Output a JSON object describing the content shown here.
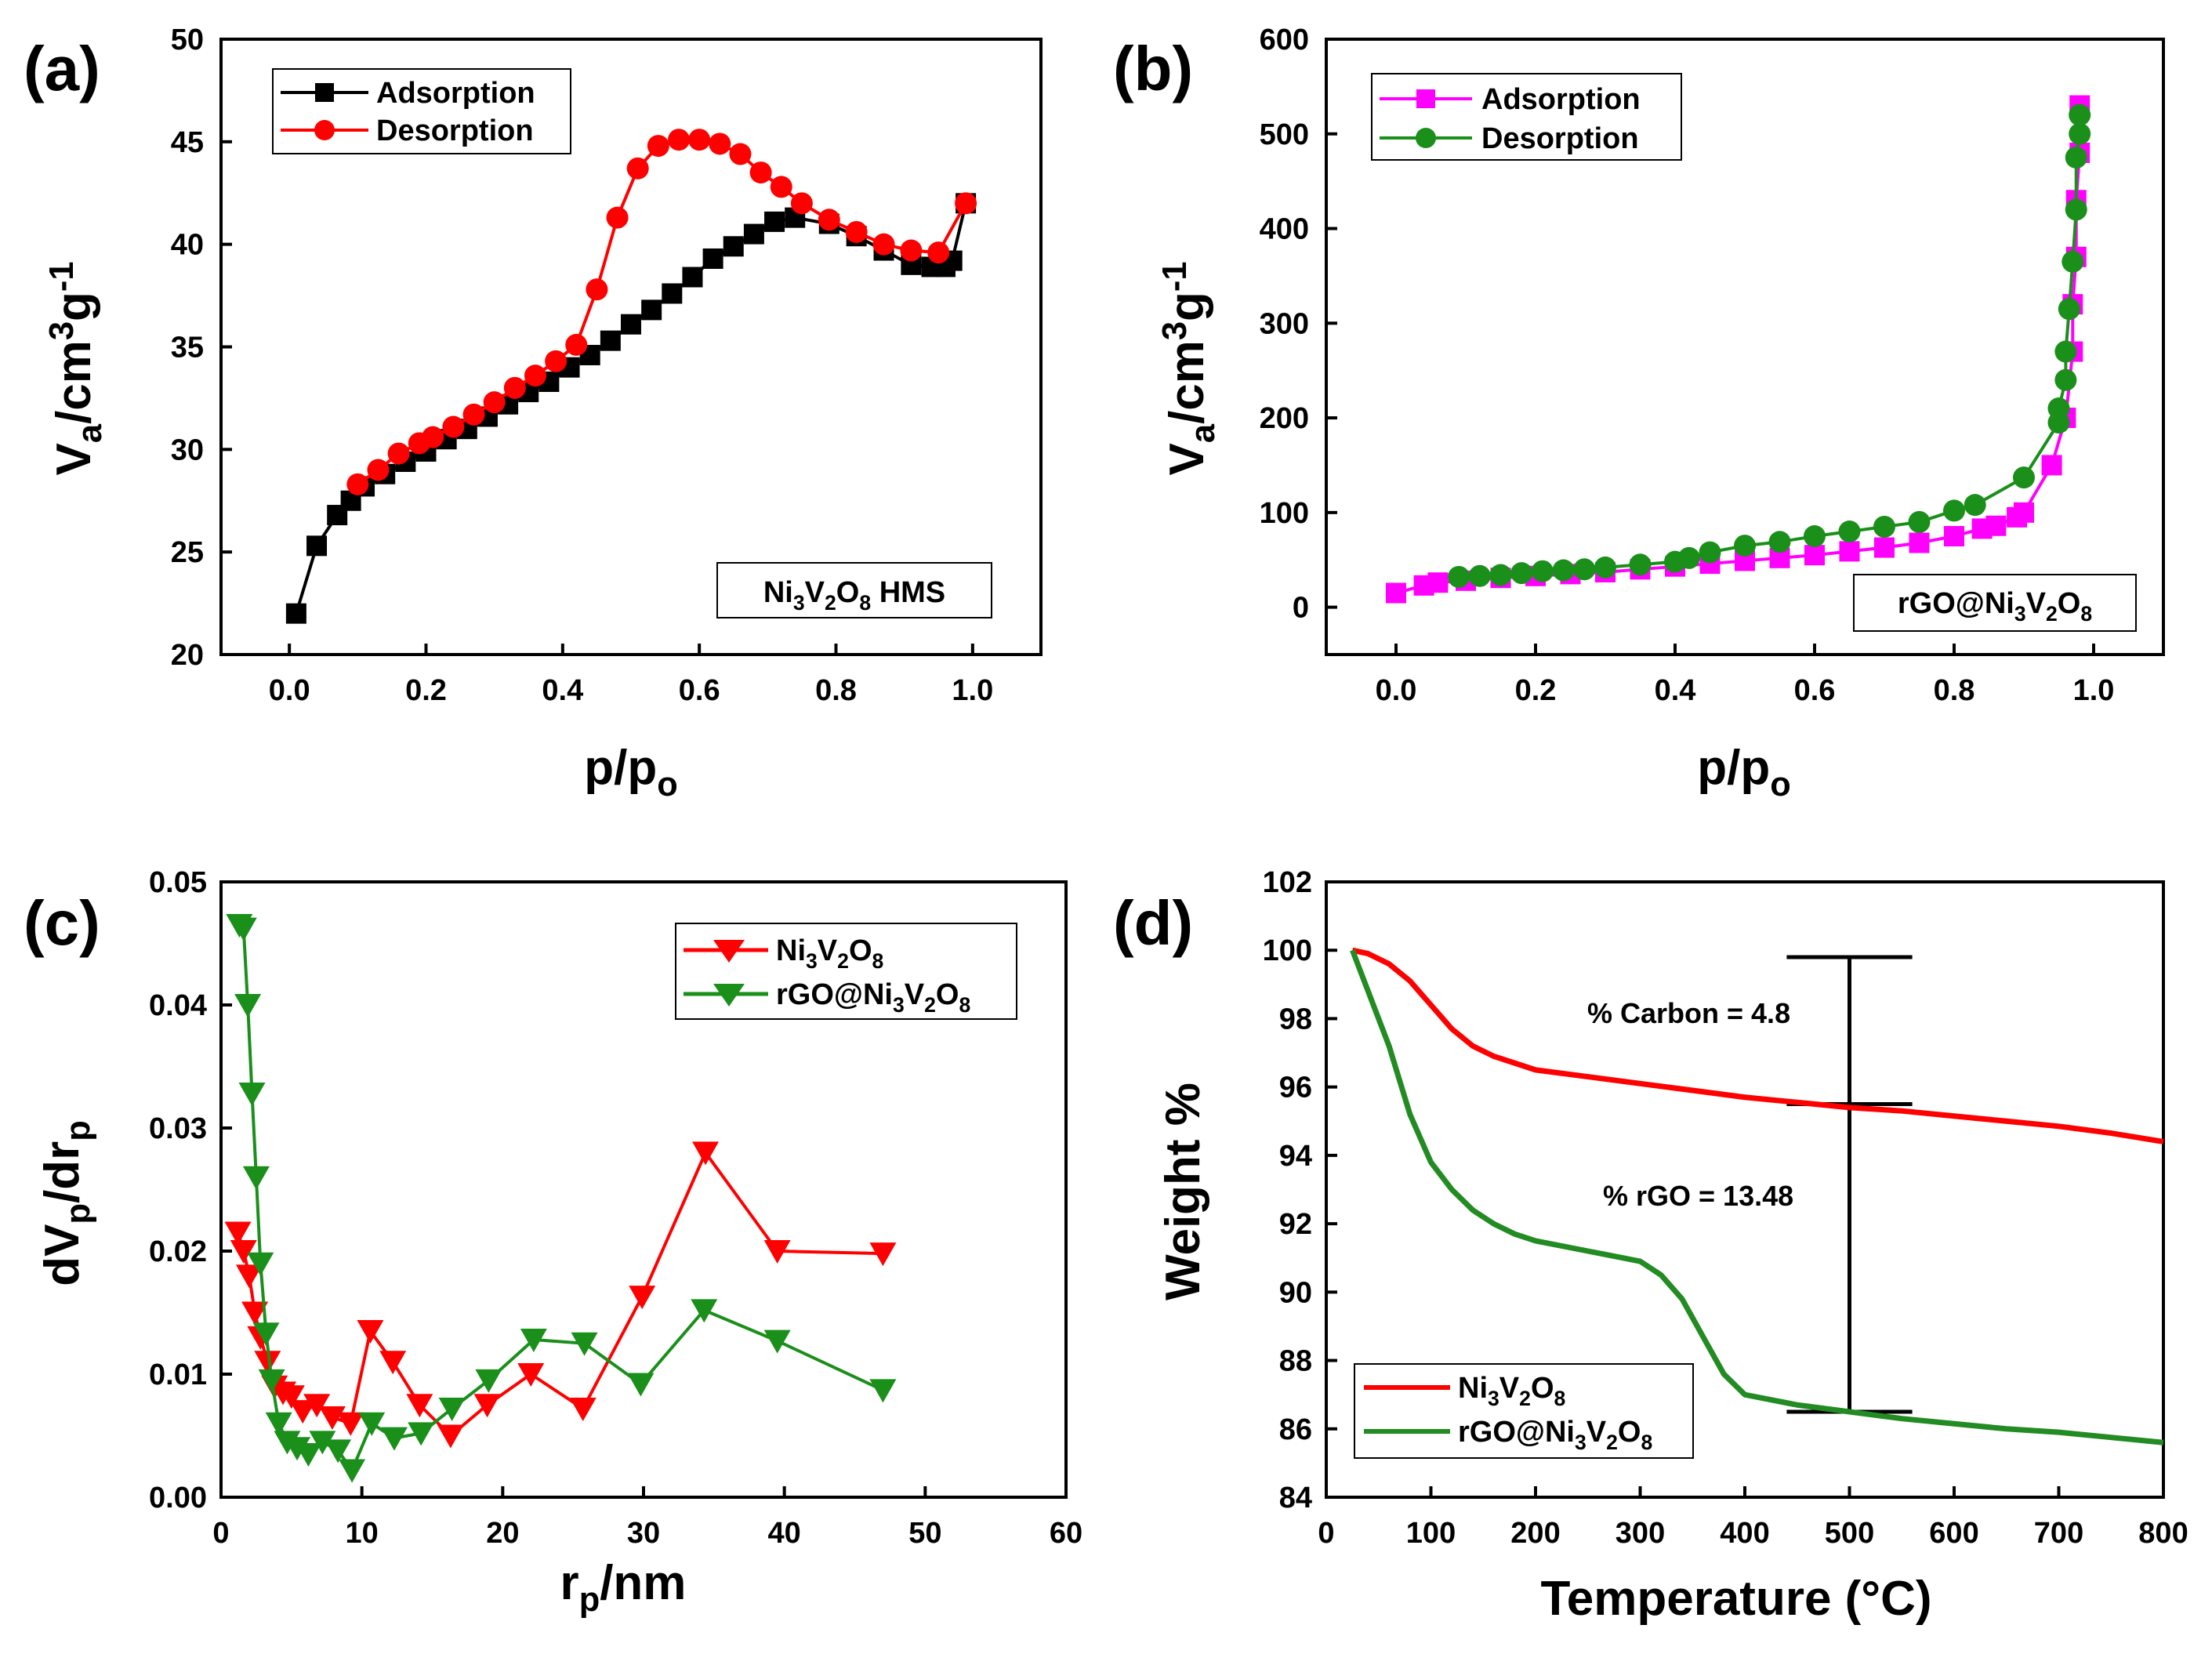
{
  "colors": {
    "black": "#000000",
    "red": "#ff0000",
    "magenta": "#ff00ff",
    "green": "#1a8f1a",
    "green_line": "#228B22"
  },
  "chart_data": [
    {
      "panel": "(a)",
      "type": "line",
      "xlabel": "p/po",
      "ylabel": "Va/cm3g-1",
      "xlim": [
        -0.1,
        1.1
      ],
      "ylim": [
        20,
        50
      ],
      "xticks": [
        0.0,
        0.2,
        0.4,
        0.6,
        0.8,
        1.0
      ],
      "xtick_labels": [
        "0.0",
        "0.2",
        "0.4",
        "0.6",
        "0.8",
        "1.0"
      ],
      "yticks": [
        20,
        25,
        30,
        35,
        40,
        45,
        50
      ],
      "ytick_labels": [
        "20",
        "25",
        "30",
        "35",
        "40",
        "45",
        "50"
      ],
      "annotation": "Ni3V2O8 HMS",
      "legend_position": "top-left",
      "series": [
        {
          "name": "Adsorption",
          "marker": "square",
          "color": "#000000",
          "x": [
            0.01,
            0.04,
            0.07,
            0.09,
            0.11,
            0.14,
            0.17,
            0.2,
            0.23,
            0.26,
            0.29,
            0.32,
            0.35,
            0.38,
            0.41,
            0.44,
            0.47,
            0.5,
            0.53,
            0.56,
            0.59,
            0.62,
            0.65,
            0.68,
            0.71,
            0.74,
            0.79,
            0.83,
            0.87,
            0.91,
            0.94,
            0.96,
            0.97,
            0.99
          ],
          "y": [
            22.0,
            25.3,
            26.8,
            27.5,
            28.2,
            28.8,
            29.4,
            29.9,
            30.5,
            31.0,
            31.6,
            32.2,
            32.8,
            33.3,
            34.0,
            34.6,
            35.3,
            36.1,
            36.8,
            37.6,
            38.4,
            39.3,
            39.9,
            40.5,
            41.1,
            41.3,
            41.0,
            40.4,
            39.7,
            39.0,
            38.9,
            38.9,
            39.2,
            42.0
          ]
        },
        {
          "name": "Desorption",
          "marker": "circle",
          "color": "#ff0000",
          "x": [
            0.99,
            0.95,
            0.91,
            0.87,
            0.83,
            0.79,
            0.75,
            0.72,
            0.69,
            0.66,
            0.63,
            0.6,
            0.57,
            0.54,
            0.51,
            0.48,
            0.45,
            0.42,
            0.39,
            0.36,
            0.33,
            0.3,
            0.27,
            0.24,
            0.21,
            0.19,
            0.16,
            0.13,
            0.1
          ],
          "y": [
            42.0,
            39.6,
            39.7,
            40.0,
            40.6,
            41.2,
            42.0,
            42.8,
            43.5,
            44.4,
            44.9,
            45.1,
            45.1,
            44.8,
            43.7,
            41.3,
            37.8,
            35.1,
            34.3,
            33.6,
            33.0,
            32.3,
            31.7,
            31.1,
            30.6,
            30.3,
            29.8,
            29.0,
            28.3
          ]
        }
      ]
    },
    {
      "panel": "(b)",
      "type": "line",
      "xlabel": "p/po",
      "ylabel": "Va/cm3g-1",
      "xlim": [
        -0.1,
        1.1
      ],
      "ylim": [
        -50,
        600
      ],
      "xticks": [
        0.0,
        0.2,
        0.4,
        0.6,
        0.8,
        1.0
      ],
      "xtick_labels": [
        "0.0",
        "0.2",
        "0.4",
        "0.6",
        "0.8",
        "1.0"
      ],
      "yticks": [
        0,
        100,
        200,
        300,
        400,
        500,
        600
      ],
      "ytick_labels": [
        "0",
        "100",
        "200",
        "300",
        "400",
        "500",
        "600"
      ],
      "annotation": "rGO@Ni3V2O8",
      "legend_position": "top-left",
      "series": [
        {
          "name": "Adsorption",
          "marker": "square",
          "color": "#ff00ff",
          "x": [
            0.0,
            0.04,
            0.06,
            0.1,
            0.15,
            0.2,
            0.25,
            0.3,
            0.35,
            0.4,
            0.45,
            0.5,
            0.55,
            0.6,
            0.65,
            0.7,
            0.75,
            0.8,
            0.84,
            0.86,
            0.89,
            0.9,
            0.94,
            0.96,
            0.97,
            0.97,
            0.975,
            0.975,
            0.98,
            0.98
          ],
          "y": [
            15,
            23,
            26,
            28,
            31,
            33,
            35,
            37,
            40,
            43,
            46,
            49,
            52,
            55,
            59,
            63,
            68,
            75,
            83,
            86,
            95,
            100,
            150,
            200,
            270,
            320,
            370,
            430,
            480,
            530
          ]
        },
        {
          "name": "Desorption",
          "marker": "circle",
          "color": "#1a8f1a",
          "x": [
            0.98,
            0.98,
            0.975,
            0.975,
            0.97,
            0.965,
            0.96,
            0.96,
            0.95,
            0.95,
            0.9,
            0.83,
            0.8,
            0.75,
            0.7,
            0.65,
            0.6,
            0.55,
            0.5,
            0.45,
            0.42,
            0.4,
            0.35,
            0.3,
            0.27,
            0.24,
            0.21,
            0.18,
            0.15,
            0.12,
            0.09
          ],
          "y": [
            520,
            500,
            475,
            420,
            365,
            315,
            270,
            240,
            210,
            195,
            137,
            108,
            102,
            90,
            85,
            80,
            75,
            69,
            65,
            58,
            52,
            48,
            45,
            42,
            40,
            39,
            38,
            36,
            34,
            33,
            32
          ]
        }
      ]
    },
    {
      "panel": "(c)",
      "type": "line",
      "xlabel": "rp/nm",
      "ylabel": "dVp/drp",
      "xlim": [
        0,
        60
      ],
      "ylim": [
        0.0,
        0.05
      ],
      "xticks": [
        0,
        10,
        20,
        30,
        40,
        50,
        60
      ],
      "xtick_labels": [
        "0",
        "10",
        "20",
        "30",
        "40",
        "50",
        "60"
      ],
      "yticks": [
        0.0,
        0.01,
        0.02,
        0.03,
        0.04,
        0.05
      ],
      "ytick_labels": [
        "0.00",
        "0.01",
        "0.02",
        "0.03",
        "0.04",
        "0.05"
      ],
      "legend_position": "top-right",
      "series": [
        {
          "name": "Ni3V2O8",
          "marker": "triangle-down",
          "color": "#ff0000",
          "x": [
            1.2,
            1.6,
            2.0,
            2.4,
            2.8,
            3.3,
            3.8,
            4.4,
            5.0,
            5.8,
            6.8,
            7.9,
            9.2,
            10.6,
            12.2,
            14.1,
            16.3,
            18.9,
            22.0,
            25.7,
            29.9,
            34.4,
            39.5,
            47.0
          ],
          "y": [
            0.0215,
            0.02,
            0.018,
            0.015,
            0.013,
            0.011,
            0.009,
            0.0085,
            0.0082,
            0.007,
            0.0075,
            0.0065,
            0.006,
            0.0135,
            0.011,
            0.0075,
            0.005,
            0.0075,
            0.01,
            0.0072,
            0.0163,
            0.028,
            0.02,
            0.0198
          ]
        },
        {
          "name": "rGO@Ni3V2O8",
          "marker": "triangle-down",
          "color": "#1a8f1a",
          "x": [
            1.3,
            1.6,
            1.9,
            2.2,
            2.5,
            2.8,
            3.2,
            3.6,
            4.1,
            4.7,
            5.4,
            6.2,
            7.2,
            8.3,
            9.3,
            10.7,
            12.3,
            14.2,
            16.4,
            19.0,
            22.2,
            25.8,
            29.8,
            34.3,
            39.5,
            47.0
          ],
          "y": [
            0.0465,
            0.0462,
            0.04,
            0.0328,
            0.026,
            0.019,
            0.0133,
            0.0095,
            0.006,
            0.0045,
            0.004,
            0.0035,
            0.0045,
            0.0038,
            0.0022,
            0.006,
            0.0048,
            0.0052,
            0.0072,
            0.0095,
            0.0128,
            0.0125,
            0.0092,
            0.0152,
            0.0127,
            0.0087
          ]
        }
      ]
    },
    {
      "panel": "(d)",
      "type": "line",
      "xlabel": "Temperature (°C)",
      "ylabel": "Weight %",
      "xlim": [
        0,
        800
      ],
      "ylim": [
        84,
        102
      ],
      "xticks": [
        0,
        100,
        200,
        300,
        400,
        500,
        600,
        700,
        800
      ],
      "xtick_labels": [
        "0",
        "100",
        "200",
        "300",
        "400",
        "500",
        "600",
        "700",
        "800"
      ],
      "yticks": [
        84,
        86,
        88,
        90,
        92,
        94,
        96,
        98,
        100,
        102
      ],
      "ytick_labels": [
        "84",
        "86",
        "88",
        "90",
        "92",
        "94",
        "96",
        "98",
        "100",
        "102"
      ],
      "legend_position": "bottom-left",
      "annotations": [
        "% Carbon = 4.8",
        "% rGO = 13.48"
      ],
      "error_bar": {
        "x": 500,
        "top": 99.8,
        "middle": 95.5,
        "bottom": 86.5,
        "half_width": 60
      },
      "series": [
        {
          "name": "Ni3V2O8",
          "marker": "none",
          "color": "#ff0000",
          "x": [
            25,
            40,
            60,
            80,
            100,
            120,
            140,
            160,
            180,
            200,
            250,
            300,
            350,
            400,
            450,
            500,
            550,
            600,
            650,
            700,
            750,
            800
          ],
          "y": [
            100.0,
            99.9,
            99.6,
            99.1,
            98.4,
            97.7,
            97.2,
            96.9,
            96.7,
            96.5,
            96.3,
            96.1,
            95.9,
            95.7,
            95.55,
            95.4,
            95.3,
            95.15,
            95.0,
            94.85,
            94.65,
            94.4
          ]
        },
        {
          "name": "rGO@Ni3V2O8",
          "marker": "none",
          "color": "#228B22",
          "x": [
            25,
            40,
            60,
            80,
            100,
            120,
            140,
            160,
            180,
            200,
            250,
            300,
            320,
            340,
            360,
            380,
            400,
            450,
            500,
            550,
            600,
            650,
            700,
            750,
            800
          ],
          "y": [
            100.0,
            98.8,
            97.2,
            95.2,
            93.8,
            93.0,
            92.4,
            92.0,
            91.7,
            91.5,
            91.2,
            90.9,
            90.5,
            89.8,
            88.7,
            87.6,
            87.0,
            86.7,
            86.5,
            86.3,
            86.15,
            86.0,
            85.9,
            85.75,
            85.6
          ]
        }
      ]
    }
  ]
}
